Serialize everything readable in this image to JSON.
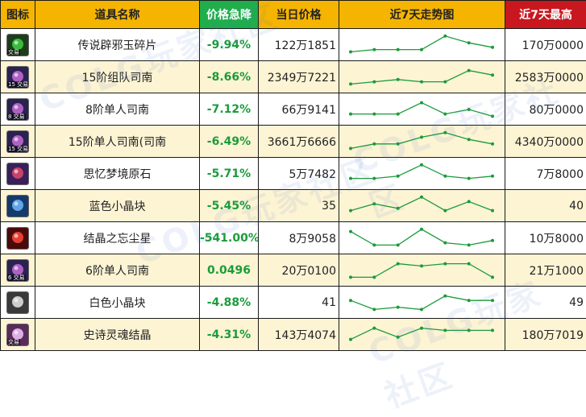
{
  "headers": {
    "icon": "图标",
    "name": "道具名称",
    "change": "价格急降",
    "price": "当日价格",
    "trend": "近7天走势图",
    "max": "近7天最高"
  },
  "colors": {
    "header_bg": "#f5b400",
    "drop_header_bg": "#1fae4b",
    "max_header_bg": "#c8171e",
    "row_alt_bg": "#fdf4d4",
    "change_text": "#1a9c3a",
    "trend_line": "#1a9c3a"
  },
  "rows": [
    {
      "icon": "jade-fragment-icon",
      "icon_tag": "交易",
      "name": "传说辟邪玉碎片",
      "change": "-9.94%",
      "price": "122万1851",
      "max": "170万0000",
      "trend": [
        2,
        3,
        3,
        3,
        9,
        6,
        4
      ]
    },
    {
      "icon": "compass-15-party-icon",
      "icon_tag": "15 交易",
      "name": "15阶组队司南",
      "change": "-8.66%",
      "price": "2349万7221",
      "max": "2583万0000",
      "trend": [
        2,
        3,
        4,
        3,
        3,
        8,
        6
      ]
    },
    {
      "icon": "compass-8-solo-icon",
      "icon_tag": "8 交易",
      "name": "8阶单人司南",
      "change": "-7.12%",
      "price": "66万9141",
      "max": "80万0000",
      "trend": [
        3,
        3,
        3,
        8,
        3,
        5,
        2
      ]
    },
    {
      "icon": "compass-15-solo-icon",
      "icon_tag": "15 交易",
      "name": "15阶单人司南(司南",
      "change": "-6.49%",
      "price": "3661万6666",
      "max": "4340万0000",
      "trend": [
        2,
        4,
        4,
        7,
        9,
        6,
        4
      ]
    },
    {
      "icon": "dream-ore-icon",
      "icon_tag": "",
      "name": "思忆梦境原石",
      "change": "-5.71%",
      "price": "5万7482",
      "max": "7万8000",
      "trend": [
        3,
        3,
        4,
        9,
        4,
        3,
        4
      ]
    },
    {
      "icon": "blue-crystal-icon",
      "icon_tag": "",
      "name": "蓝色小晶块",
      "change": "-5.45%",
      "price": "35",
      "max": "40",
      "trend": [
        3,
        6,
        4,
        9,
        3,
        7,
        3
      ]
    },
    {
      "icon": "forgotten-dust-icon",
      "icon_tag": "",
      "name": "结晶之忘尘星",
      "change": "-541.00%",
      "price": "8万9058",
      "max": "10万8000",
      "trend": [
        8,
        2,
        2,
        9,
        3,
        2,
        4
      ]
    },
    {
      "icon": "compass-6-solo-icon",
      "icon_tag": "6 交易",
      "name": "6阶单人司南",
      "change": "0.0496",
      "price": "20万0100",
      "max": "21万1000",
      "trend": [
        2,
        2,
        8,
        7,
        8,
        8,
        2
      ]
    },
    {
      "icon": "white-crystal-icon",
      "icon_tag": "",
      "name": "白色小晶块",
      "change": "-4.88%",
      "price": "41",
      "max": "49",
      "trend": [
        6,
        2,
        3,
        2,
        8,
        6,
        6
      ]
    },
    {
      "icon": "epic-soul-crystal-icon",
      "icon_tag": "交易",
      "name": "史诗灵魂结晶",
      "change": "-4.31%",
      "price": "143万4074",
      "max": "180万7019",
      "trend": [
        3,
        8,
        4,
        8,
        7,
        7,
        7
      ]
    }
  ],
  "watermark": "COLG玩家社区"
}
